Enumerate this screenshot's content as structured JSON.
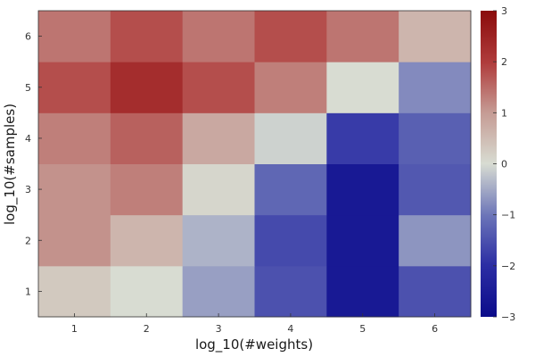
{
  "chart_data": {
    "type": "heatmap",
    "x": [
      1,
      2,
      3,
      4,
      5,
      6
    ],
    "y": [
      1,
      2,
      3,
      4,
      5,
      6
    ],
    "xlabel": "log_10(#weights)",
    "ylabel": "log_10(#samples)",
    "z": [
      [
        0.3,
        0.0,
        -0.6,
        -1.5,
        -2.6,
        -1.5
      ],
      [
        1.1,
        0.6,
        -0.4,
        -1.6,
        -2.6,
        -0.7
      ],
      [
        1.1,
        1.3,
        0.1,
        -1.2,
        -2.6,
        -1.4
      ],
      [
        1.3,
        1.6,
        0.8,
        -0.1,
        -1.8,
        -1.3
      ],
      [
        1.8,
        2.3,
        1.8,
        1.3,
        0.0,
        -0.8
      ],
      [
        1.4,
        1.8,
        1.4,
        1.8,
        1.4,
        0.6
      ]
    ],
    "colorbar": {
      "min": -3,
      "max": 3,
      "ticks": [
        -3,
        -2,
        -1,
        0,
        1,
        2,
        3
      ],
      "tick_labels": [
        "−3",
        "−2",
        "−1",
        "0",
        "1",
        "2",
        "3"
      ]
    },
    "colormap": {
      "name": "balance",
      "stops": [
        {
          "v": 0.0,
          "color": "#0b0b8a"
        },
        {
          "v": 0.17,
          "color": "#2c2ea4"
        },
        {
          "v": 0.33,
          "color": "#6b74b8"
        },
        {
          "v": 0.5,
          "color": "#d8dcd2"
        },
        {
          "v": 0.67,
          "color": "#c59a93"
        },
        {
          "v": 0.83,
          "color": "#b03c3c"
        },
        {
          "v": 1.0,
          "color": "#8a0b0b"
        }
      ]
    },
    "grid": false
  }
}
